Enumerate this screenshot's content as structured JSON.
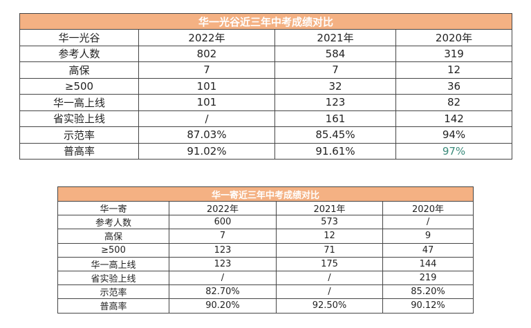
{
  "table1": {
    "title": "华一光谷近三年中考成绩对比",
    "header": [
      "华一光谷",
      "2022年",
      "2021年",
      "2020年"
    ],
    "rows": [
      [
        "参考人数",
        "802",
        "584",
        "319"
      ],
      [
        "高保",
        "7",
        "7",
        "12"
      ],
      [
        "≥500",
        "101",
        "32",
        "36"
      ],
      [
        "华一高上线",
        "101",
        "123",
        "82"
      ],
      [
        "省实验上线",
        "/",
        "161",
        "142"
      ],
      [
        "示范率",
        "87.03%",
        "85.45%",
        "94%"
      ],
      [
        "普高率",
        "91.02%",
        "91.61%",
        "97%"
      ]
    ]
  },
  "table2": {
    "title": "华一寄近三年中考成绩对比",
    "header": [
      "华一寄",
      "2022年",
      "2021年",
      "2020年"
    ],
    "rows": [
      [
        "参考人数",
        "600",
        "573",
        "/"
      ],
      [
        "高保",
        "7",
        "12",
        "9"
      ],
      [
        "≥500",
        "123",
        "71",
        "47"
      ],
      [
        "华一高上线",
        "123",
        "175",
        "144"
      ],
      [
        "省实验上线",
        "/",
        "/",
        "219"
      ],
      [
        "示范率",
        "82.70%",
        "/",
        "85.20%"
      ],
      [
        "普高率",
        "90.20%",
        "92.50%",
        "90.12%"
      ]
    ]
  }
}
